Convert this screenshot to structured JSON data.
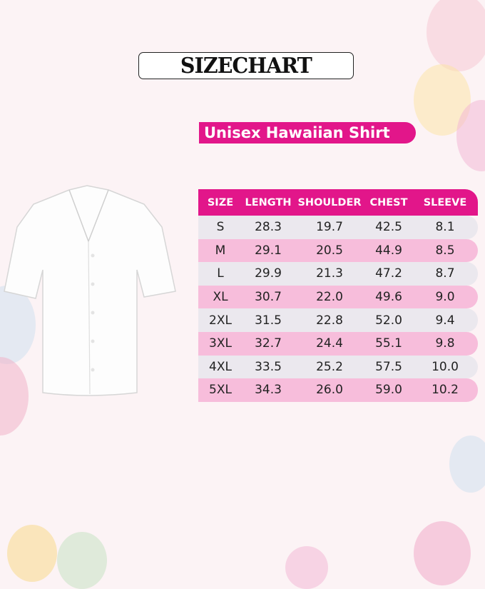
{
  "title": "SIZECHART",
  "subtitle": "Unisex Hawaiian Shirt",
  "colors": {
    "accent": "#e2168a",
    "row_pink": "#f7bddb",
    "row_gray": "#ebe8ee",
    "background": "#fcf3f5"
  },
  "table": {
    "headers": [
      "SIZE",
      "LENGTH",
      "SHOULDER",
      "CHEST",
      "SLEEVE"
    ],
    "rows": [
      [
        "S",
        "28.3",
        "19.7",
        "42.5",
        "8.1"
      ],
      [
        "M",
        "29.1",
        "20.5",
        "44.9",
        "8.5"
      ],
      [
        "L",
        "29.9",
        "21.3",
        "47.2",
        "8.7"
      ],
      [
        "XL",
        "30.7",
        "22.0",
        "49.6",
        "9.0"
      ],
      [
        "2XL",
        "31.5",
        "22.8",
        "52.0",
        "9.4"
      ],
      [
        "3XL",
        "32.7",
        "24.4",
        "55.1",
        "9.8"
      ],
      [
        "4XL",
        "33.5",
        "25.2",
        "57.5",
        "10.0"
      ],
      [
        "5XL",
        "34.3",
        "26.0",
        "59.0",
        "10.2"
      ]
    ]
  }
}
